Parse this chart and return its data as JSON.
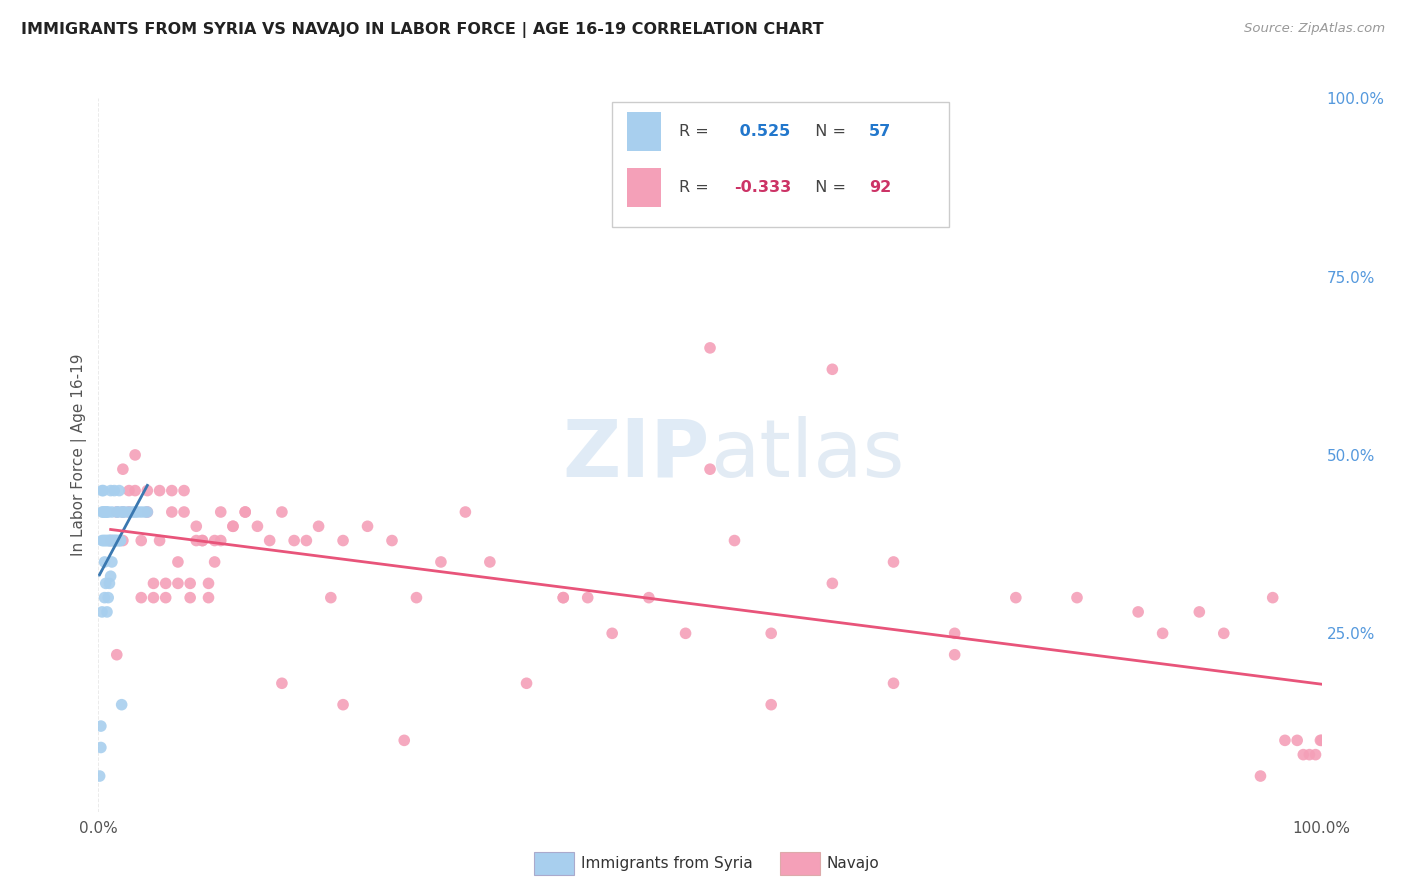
{
  "title": "IMMIGRANTS FROM SYRIA VS NAVAJO IN LABOR FORCE | AGE 16-19 CORRELATION CHART",
  "source": "Source: ZipAtlas.com",
  "ylabel": "In Labor Force | Age 16-19",
  "xlim": [
    0.0,
    1.0
  ],
  "ylim": [
    0.0,
    1.0
  ],
  "y_tick_labels_right": [
    "100.0%",
    "75.0%",
    "50.0%",
    "25.0%"
  ],
  "y_ticks_right": [
    1.0,
    0.75,
    0.5,
    0.25
  ],
  "legend1_label": "Immigrants from Syria",
  "legend2_label": "Navajo",
  "syria_R": 0.525,
  "syria_N": 57,
  "navajo_R": -0.333,
  "navajo_N": 92,
  "syria_color": "#A8CFEE",
  "navajo_color": "#F4A0B8",
  "syria_line_color": "#3A78B0",
  "navajo_line_color": "#E8547A",
  "watermark_zip": "ZIP",
  "watermark_atlas": "atlas",
  "background_color": "#FFFFFF",
  "grid_color": "#EBEBEB",
  "syria_x": [
    0.001,
    0.002,
    0.002,
    0.003,
    0.003,
    0.003,
    0.004,
    0.004,
    0.005,
    0.005,
    0.005,
    0.006,
    0.006,
    0.007,
    0.007,
    0.008,
    0.008,
    0.009,
    0.009,
    0.01,
    0.01,
    0.011,
    0.011,
    0.012,
    0.013,
    0.014,
    0.015,
    0.016,
    0.017,
    0.018,
    0.019,
    0.02,
    0.022,
    0.025,
    0.028,
    0.03,
    0.032,
    0.035,
    0.038,
    0.04,
    0.003,
    0.004,
    0.005,
    0.006,
    0.007,
    0.008,
    0.009,
    0.01,
    0.011,
    0.012,
    0.013,
    0.014,
    0.015,
    0.016,
    0.017,
    0.018,
    0.019
  ],
  "syria_y": [
    0.05,
    0.09,
    0.12,
    0.38,
    0.42,
    0.28,
    0.38,
    0.42,
    0.3,
    0.35,
    0.38,
    0.32,
    0.42,
    0.28,
    0.42,
    0.3,
    0.42,
    0.32,
    0.38,
    0.33,
    0.45,
    0.35,
    0.42,
    0.38,
    0.45,
    0.38,
    0.42,
    0.42,
    0.45,
    0.38,
    0.42,
    0.42,
    0.42,
    0.42,
    0.42,
    0.42,
    0.42,
    0.42,
    0.42,
    0.42,
    0.45,
    0.45,
    0.42,
    0.38,
    0.38,
    0.38,
    0.38,
    0.38,
    0.38,
    0.38,
    0.38,
    0.38,
    0.38,
    0.38,
    0.38,
    0.38,
    0.15
  ],
  "navajo_x": [
    0.01,
    0.015,
    0.02,
    0.02,
    0.025,
    0.03,
    0.035,
    0.04,
    0.045,
    0.05,
    0.055,
    0.06,
    0.065,
    0.07,
    0.075,
    0.08,
    0.085,
    0.09,
    0.095,
    0.1,
    0.11,
    0.12,
    0.13,
    0.14,
    0.15,
    0.16,
    0.17,
    0.18,
    0.19,
    0.2,
    0.22,
    0.24,
    0.26,
    0.28,
    0.3,
    0.32,
    0.35,
    0.38,
    0.4,
    0.42,
    0.45,
    0.48,
    0.5,
    0.55,
    0.6,
    0.65,
    0.7,
    0.75,
    0.8,
    0.85,
    0.87,
    0.9,
    0.92,
    0.95,
    0.96,
    0.97,
    0.98,
    0.985,
    0.99,
    0.995,
    0.999,
    1.0,
    0.5,
    0.6,
    0.15,
    0.2,
    0.25,
    0.38,
    0.52,
    0.55,
    0.65,
    0.7,
    0.015,
    0.02,
    0.025,
    0.03,
    0.035,
    0.04,
    0.045,
    0.05,
    0.055,
    0.06,
    0.065,
    0.07,
    0.075,
    0.08,
    0.085,
    0.09,
    0.095,
    0.1,
    0.11,
    0.12
  ],
  "navajo_y": [
    0.38,
    0.42,
    0.42,
    0.48,
    0.42,
    0.45,
    0.38,
    0.42,
    0.32,
    0.38,
    0.32,
    0.42,
    0.35,
    0.42,
    0.32,
    0.38,
    0.38,
    0.32,
    0.38,
    0.42,
    0.4,
    0.42,
    0.4,
    0.38,
    0.42,
    0.38,
    0.38,
    0.4,
    0.3,
    0.38,
    0.4,
    0.38,
    0.3,
    0.35,
    0.42,
    0.35,
    0.18,
    0.3,
    0.3,
    0.25,
    0.3,
    0.25,
    0.48,
    0.25,
    0.32,
    0.35,
    0.25,
    0.3,
    0.3,
    0.28,
    0.25,
    0.28,
    0.25,
    0.05,
    0.3,
    0.1,
    0.1,
    0.08,
    0.08,
    0.08,
    0.1,
    0.1,
    0.65,
    0.62,
    0.18,
    0.15,
    0.1,
    0.3,
    0.38,
    0.15,
    0.18,
    0.22,
    0.22,
    0.38,
    0.45,
    0.5,
    0.3,
    0.45,
    0.3,
    0.45,
    0.3,
    0.45,
    0.32,
    0.45,
    0.3,
    0.4,
    0.38,
    0.3,
    0.35,
    0.38,
    0.4,
    0.42
  ]
}
